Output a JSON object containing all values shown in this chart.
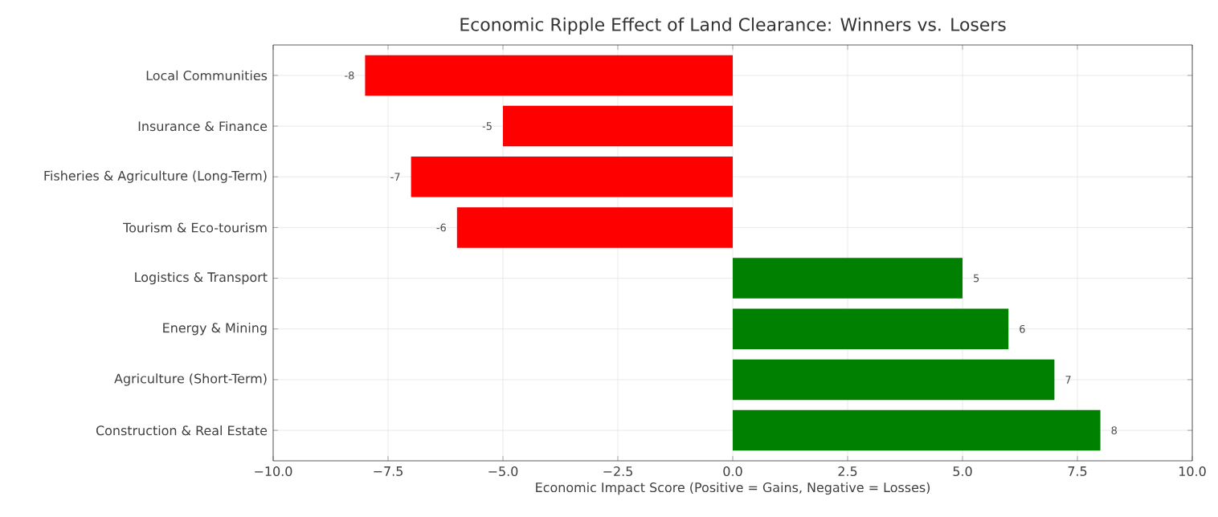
{
  "chart_data": {
    "type": "bar",
    "orientation": "horizontal",
    "title": "Economic Ripple Effect of Land Clearance: Winners vs. Losers",
    "xlabel": "Economic Impact Score (Positive = Gains, Negative = Losses)",
    "categories": [
      "Local Communities",
      "Insurance & Finance",
      "Fisheries & Agriculture (Long-Term)",
      "Tourism & Eco-tourism",
      "Logistics & Transport",
      "Energy & Mining",
      "Agriculture (Short-Term)",
      "Construction & Real Estate"
    ],
    "values": [
      -8,
      -5,
      -7,
      -6,
      5,
      6,
      7,
      8
    ],
    "colors": [
      "#ff0000",
      "#ff0000",
      "#ff0000",
      "#ff0000",
      "#008000",
      "#008000",
      "#008000",
      "#008000"
    ],
    "xlim": [
      -10,
      10
    ],
    "xticks": [
      {
        "value": -10,
        "label": "−10.0"
      },
      {
        "value": -7.5,
        "label": "−7.5"
      },
      {
        "value": -5,
        "label": "−5.0"
      },
      {
        "value": -2.5,
        "label": "−2.5"
      },
      {
        "value": 0,
        "label": "0.0"
      },
      {
        "value": 2.5,
        "label": "2.5"
      },
      {
        "value": 5,
        "label": "5.0"
      },
      {
        "value": 7.5,
        "label": "7.5"
      },
      {
        "value": 10,
        "label": "10.0"
      }
    ],
    "grid": true,
    "data_labels": true
  }
}
